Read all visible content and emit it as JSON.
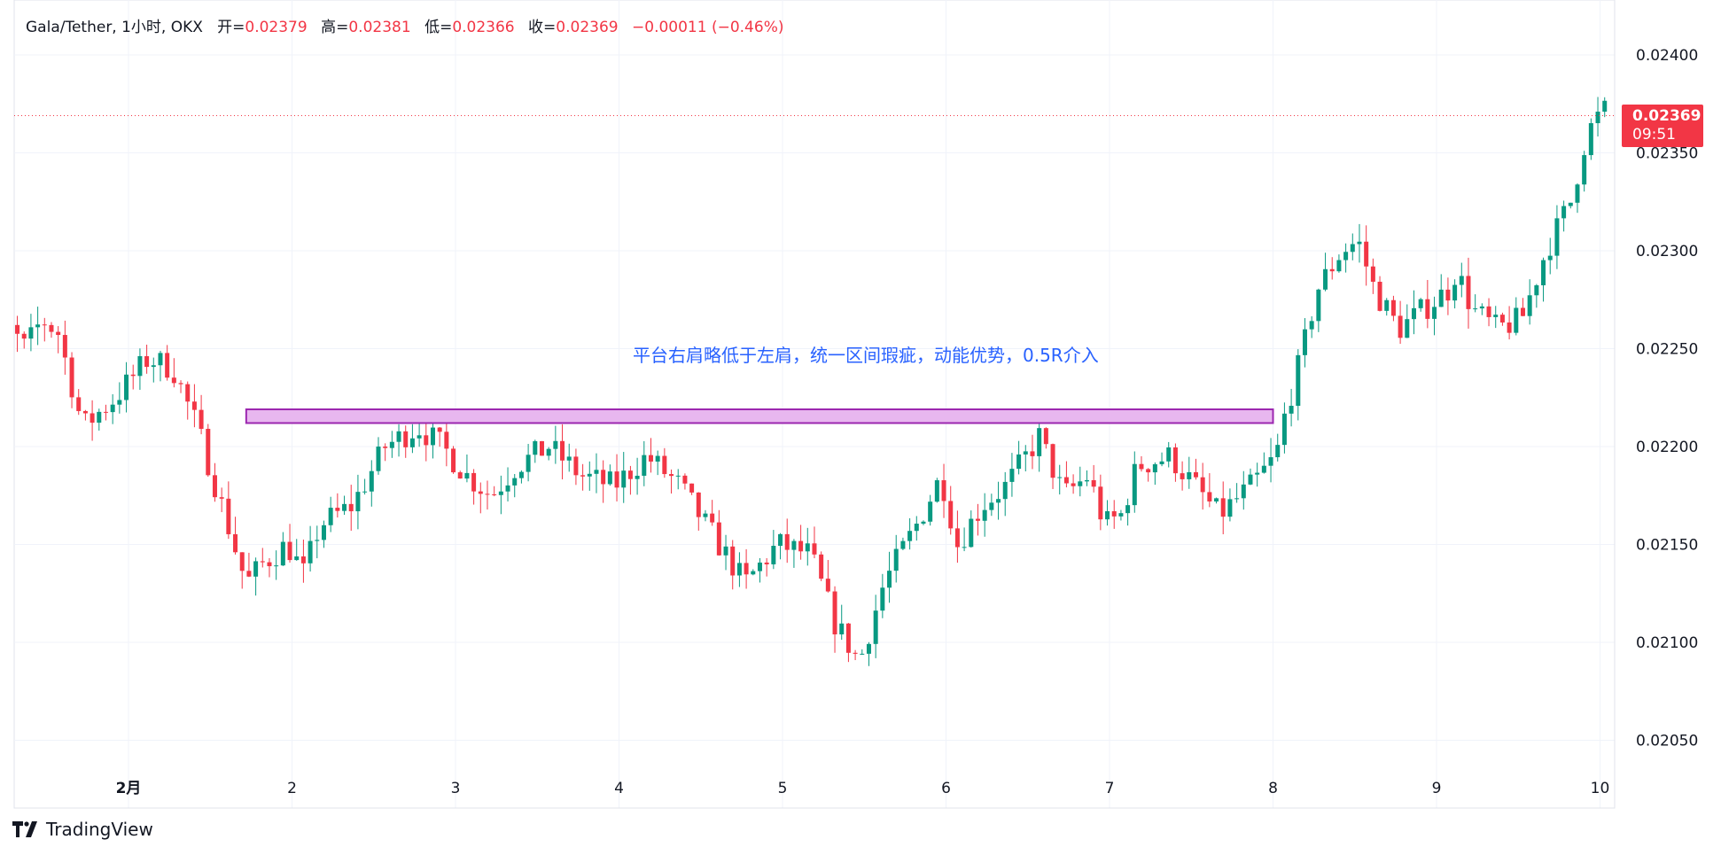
{
  "legend": {
    "symbol": "Gala/Tether, 1小时, OKX",
    "open_label": "开=",
    "open": "0.02379",
    "high_label": "高=",
    "high": "0.02381",
    "low_label": "低=",
    "low": "0.02366",
    "close_label": "收=",
    "close": "0.02369",
    "change": "−0.00011 (−0.46%)"
  },
  "price_tag": {
    "price": "0.02369",
    "countdown": "09:51"
  },
  "annotation": "平台右肩略低于左肩，统一区间瑕疵，动能优势，0.5R介入",
  "brand": "TradingView",
  "colors": {
    "up": "#089981",
    "down": "#f23645",
    "zone_fill": "#e8b7ef",
    "zone_border": "#9c27b0",
    "annotation": "#2962ff"
  },
  "chart_data": {
    "type": "candlestick",
    "timeframe": "1h",
    "x_tick_labels": [
      "2月",
      "2",
      "3",
      "4",
      "5",
      "6",
      "7",
      "8",
      "9",
      "10"
    ],
    "y_tick_labels": [
      "0.02400",
      "0.02350",
      "0.02300",
      "0.02250",
      "0.02200",
      "0.02150",
      "0.02100",
      "0.02050"
    ],
    "ylim": [
      0.0202,
      0.0243
    ],
    "last_price": 0.02369,
    "resistance_zone": {
      "top": 0.02219,
      "bottom": 0.02212,
      "from_day": 1.72,
      "to_day": 8.0
    },
    "anchors": [
      [
        0.0,
        0.0233
      ],
      [
        0.1,
        0.023
      ],
      [
        0.2,
        0.0226
      ],
      [
        0.3,
        0.0225
      ],
      [
        0.4,
        0.02265
      ],
      [
        0.5,
        0.02258
      ],
      [
        0.65,
        0.0221
      ],
      [
        0.85,
        0.02225
      ],
      [
        1.05,
        0.02245
      ],
      [
        1.2,
        0.0224
      ],
      [
        1.35,
        0.0221
      ],
      [
        1.5,
        0.0217
      ],
      [
        1.65,
        0.0213
      ],
      [
        1.75,
        0.0214
      ],
      [
        1.9,
        0.0215
      ],
      [
        2.0,
        0.02135
      ],
      [
        2.1,
        0.0216
      ],
      [
        2.3,
        0.0217
      ],
      [
        2.5,
        0.022
      ],
      [
        2.7,
        0.0221
      ],
      [
        2.85,
        0.022
      ],
      [
        3.0,
        0.02185
      ],
      [
        3.15,
        0.02175
      ],
      [
        3.3,
        0.0219
      ],
      [
        3.5,
        0.022
      ],
      [
        3.7,
        0.02185
      ],
      [
        3.9,
        0.0218
      ],
      [
        4.1,
        0.02195
      ],
      [
        4.3,
        0.0218
      ],
      [
        4.5,
        0.02155
      ],
      [
        4.7,
        0.0213
      ],
      [
        4.9,
        0.0215
      ],
      [
        5.1,
        0.02145
      ],
      [
        5.25,
        0.0211
      ],
      [
        5.4,
        0.0209
      ],
      [
        5.55,
        0.0213
      ],
      [
        5.75,
        0.0216
      ],
      [
        5.9,
        0.02185
      ],
      [
        6.0,
        0.0215
      ],
      [
        6.15,
        0.0217
      ],
      [
        6.3,
        0.0218
      ],
      [
        6.5,
        0.02205
      ],
      [
        6.65,
        0.02175
      ],
      [
        6.8,
        0.02185
      ],
      [
        6.9,
        0.0216
      ],
      [
        7.0,
        0.02165
      ],
      [
        7.1,
        0.0219
      ],
      [
        7.3,
        0.02195
      ],
      [
        7.45,
        0.0218
      ],
      [
        7.6,
        0.02165
      ],
      [
        7.8,
        0.0218
      ],
      [
        7.95,
        0.02195
      ],
      [
        8.0,
        0.02215
      ],
      [
        8.1,
        0.02245
      ],
      [
        8.2,
        0.0228
      ],
      [
        8.35,
        0.023
      ],
      [
        8.45,
        0.02305
      ],
      [
        8.55,
        0.0228
      ],
      [
        8.7,
        0.0226
      ],
      [
        8.85,
        0.0227
      ],
      [
        9.0,
        0.0228
      ],
      [
        9.05,
        0.0229
      ],
      [
        9.15,
        0.0227
      ],
      [
        9.3,
        0.0226
      ],
      [
        9.45,
        0.02265
      ],
      [
        9.6,
        0.023
      ],
      [
        9.75,
        0.02325
      ],
      [
        9.85,
        0.0236
      ],
      [
        9.95,
        0.02372
      ],
      [
        10.0,
        0.02369
      ]
    ]
  }
}
